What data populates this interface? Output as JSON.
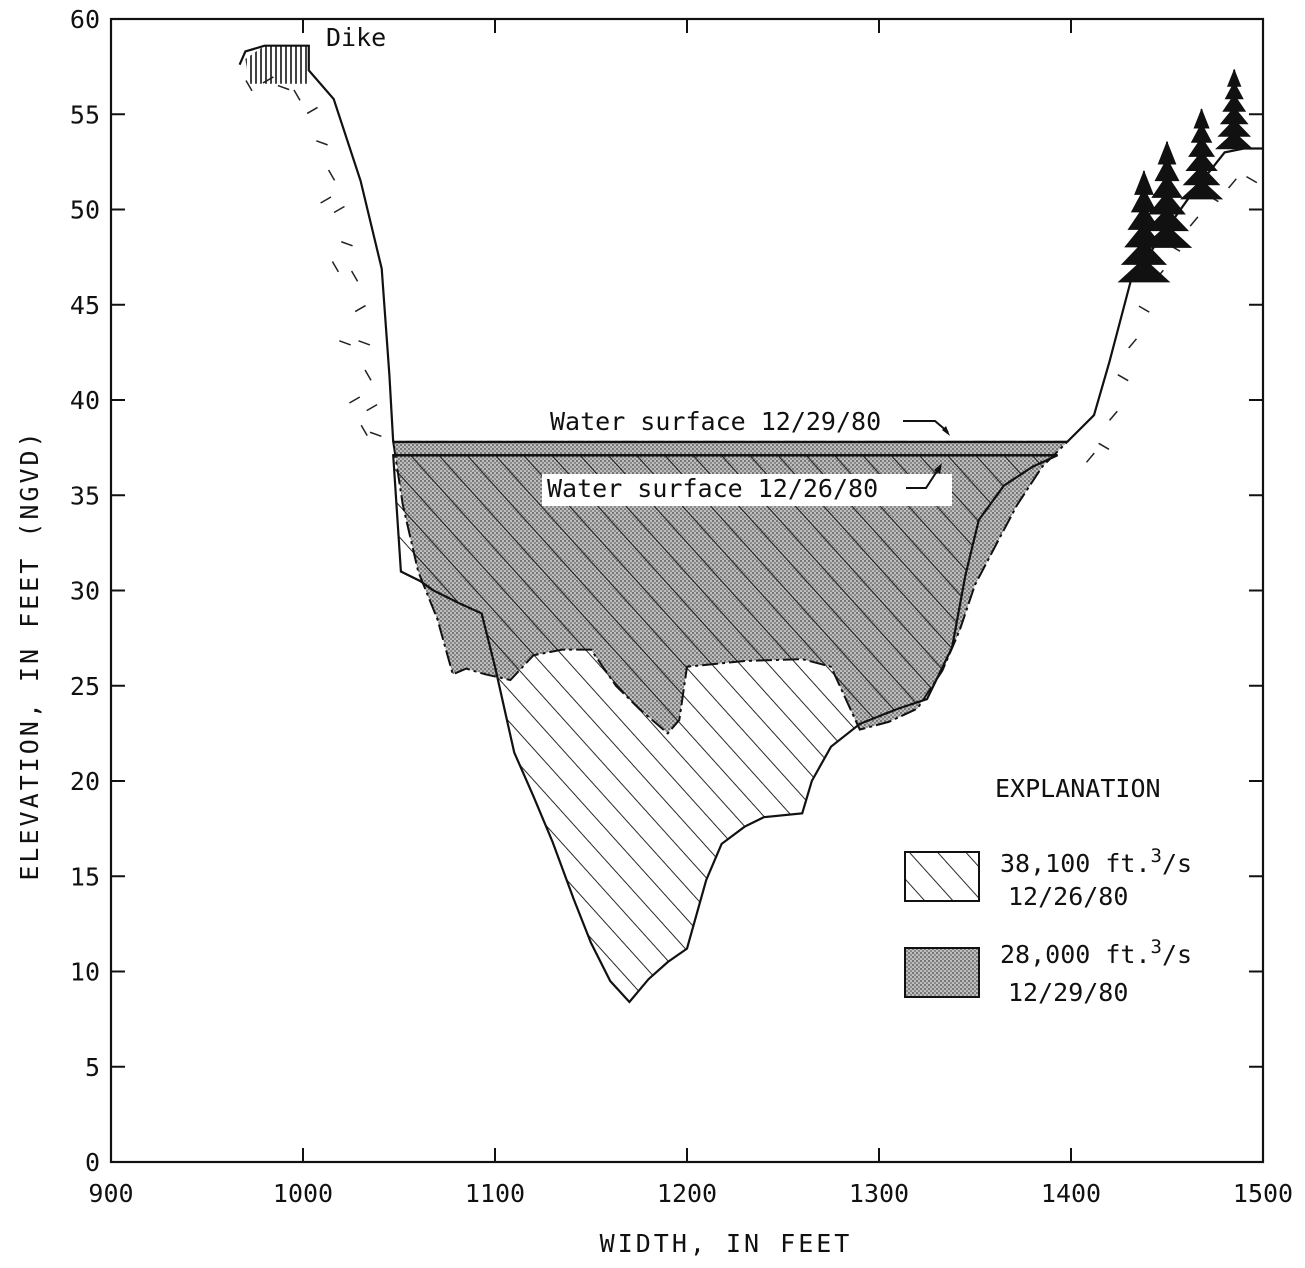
{
  "chart_data": {
    "type": "area",
    "title": "",
    "xlabel": "WIDTH, IN FEET",
    "ylabel": "ELEVATION, IN FEET (NGVD)",
    "xlim": [
      900,
      1500
    ],
    "ylim": [
      0,
      60
    ],
    "x_ticks": [
      "900",
      "1000",
      "1100",
      "1200",
      "1300",
      "1400",
      "1500"
    ],
    "y_ticks": [
      "0",
      "5",
      "10",
      "15",
      "20",
      "25",
      "30",
      "35",
      "40",
      "45",
      "50",
      "55",
      "60"
    ],
    "grid": false,
    "legend_position": "bottom-right",
    "legend": {
      "title": "EXPLANATION",
      "entries": [
        {
          "line1": "38,100 ft.",
          "sup": "3",
          "unit": "/s",
          "line2": "12/26/80",
          "pattern": "diagonal-hatch"
        },
        {
          "line1": "28,000 ft.",
          "sup": "3",
          "unit": "/s",
          "line2": "12/29/80",
          "pattern": "stipple"
        }
      ]
    },
    "annotations": {
      "dike": "Dike",
      "ws_1229": "Water surface 12/29/80",
      "ws_1226": "Water surface 12/26/80"
    },
    "water_surface": [
      {
        "date": "12/29/80",
        "elevation": 37.8,
        "x_start": 1047,
        "x_end": 1398
      },
      {
        "date": "12/26/80",
        "elevation": 37.1,
        "x_start": 1047,
        "x_end": 1393
      }
    ],
    "series": [
      {
        "name": "38,100 ft.3/s 12/26/80",
        "points": [
          [
            1047,
            37.1
          ],
          [
            1051,
            31
          ],
          [
            1061,
            30.5
          ],
          [
            1068,
            30
          ],
          [
            1082,
            29.3
          ],
          [
            1093,
            28.8
          ],
          [
            1100,
            26
          ],
          [
            1110,
            21.5
          ],
          [
            1120,
            19.2
          ],
          [
            1130,
            16.8
          ],
          [
            1141,
            13.8
          ],
          [
            1150,
            11.5
          ],
          [
            1160,
            9.5
          ],
          [
            1170,
            8.4
          ],
          [
            1180,
            9.6
          ],
          [
            1190,
            10.5
          ],
          [
            1200,
            11.2
          ],
          [
            1210,
            14.8
          ],
          [
            1218,
            16.7
          ],
          [
            1230,
            17.6
          ],
          [
            1240,
            18.1
          ],
          [
            1260,
            18.3
          ],
          [
            1265,
            20
          ],
          [
            1275,
            21.8
          ],
          [
            1290,
            23
          ],
          [
            1310,
            23.8
          ],
          [
            1325,
            24.3
          ],
          [
            1338,
            27
          ],
          [
            1345,
            30.8
          ],
          [
            1352,
            33.7
          ],
          [
            1365,
            35.5
          ],
          [
            1380,
            36.5
          ],
          [
            1393,
            37.1
          ]
        ]
      },
      {
        "name": "28,000 ft.3/s 12/29/80",
        "points": [
          [
            1047,
            37.8
          ],
          [
            1052,
            34.5
          ],
          [
            1060,
            31
          ],
          [
            1070,
            28.5
          ],
          [
            1078,
            25.6
          ],
          [
            1085,
            25.9
          ],
          [
            1095,
            25.6
          ],
          [
            1108,
            25.3
          ],
          [
            1120,
            26.6
          ],
          [
            1135,
            26.9
          ],
          [
            1150,
            26.9
          ],
          [
            1163,
            25
          ],
          [
            1175,
            23.8
          ],
          [
            1190,
            22.5
          ],
          [
            1196,
            23.2
          ],
          [
            1200,
            26
          ],
          [
            1230,
            26.3
          ],
          [
            1260,
            26.4
          ],
          [
            1275,
            26
          ],
          [
            1290,
            22.7
          ],
          [
            1305,
            23.1
          ],
          [
            1320,
            23.8
          ],
          [
            1333,
            25.8
          ],
          [
            1342,
            27.9
          ],
          [
            1350,
            30.3
          ],
          [
            1362,
            32.6
          ],
          [
            1372,
            34.5
          ],
          [
            1385,
            36.5
          ],
          [
            1398,
            37.8
          ]
        ]
      }
    ],
    "left_bank": [
      [
        967,
        57.6
      ],
      [
        970,
        58.3
      ],
      [
        980,
        58.6
      ],
      [
        1000,
        58.6
      ],
      [
        1003,
        58.6
      ],
      [
        1003,
        57.3
      ],
      [
        1016,
        55.8
      ],
      [
        1030,
        51.5
      ],
      [
        1041,
        46.9
      ],
      [
        1045,
        41.3
      ],
      [
        1047,
        37.8
      ]
    ],
    "right_bank": [
      [
        1398,
        37.8
      ],
      [
        1412,
        39.2
      ],
      [
        1420,
        42
      ],
      [
        1431,
        46.2
      ],
      [
        1445,
        48.3
      ],
      [
        1462,
        50.7
      ],
      [
        1480,
        53
      ],
      [
        1490,
        53.2
      ],
      [
        1500,
        53.2
      ]
    ]
  }
}
